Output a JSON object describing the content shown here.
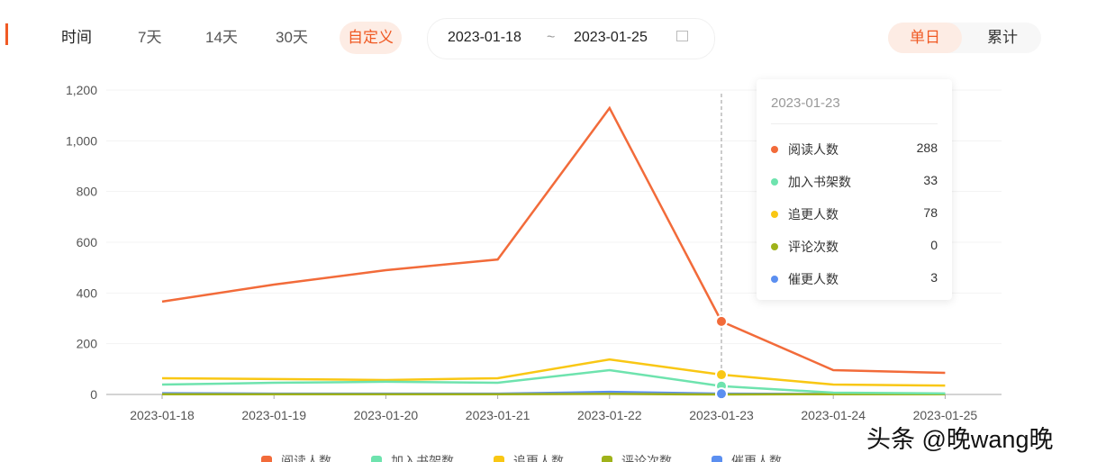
{
  "filters": {
    "label": "时间",
    "options": [
      "7天",
      "14天",
      "30天",
      "自定义"
    ],
    "active": "自定义"
  },
  "date_range": {
    "start": "2023-01-18",
    "sep": "~",
    "end": "2023-01-25",
    "icon": "calendar-icon"
  },
  "mode_toggle": {
    "options": [
      "单日",
      "累计"
    ],
    "active": "单日"
  },
  "tooltip": {
    "date": "2023-01-23",
    "rows": [
      {
        "label": "阅读人数",
        "value": "288"
      },
      {
        "label": "加入书架数",
        "value": "33"
      },
      {
        "label": "追更人数",
        "value": "78"
      },
      {
        "label": "评论次数",
        "value": "0"
      },
      {
        "label": "催更人数",
        "value": "3"
      }
    ]
  },
  "watermark": "头条 @晚wang晚",
  "chart_data": {
    "type": "line",
    "x": [
      "2023-01-18",
      "2023-01-19",
      "2023-01-20",
      "2023-01-21",
      "2023-01-22",
      "2023-01-23",
      "2023-01-24",
      "2023-01-25"
    ],
    "ylim": [
      0,
      1200
    ],
    "yticks": [
      "0",
      "200",
      "400",
      "600",
      "800",
      "1,000",
      "1,200"
    ],
    "highlight": "2023-01-23",
    "legend_position": "bottom",
    "series": [
      {
        "name": "阅读人数",
        "color": "#f26b3a",
        "values": [
          366,
          433,
          490,
          532,
          1129,
          288,
          96,
          85
        ]
      },
      {
        "name": "加入书架数",
        "color": "#6ee3ae",
        "values": [
          39,
          46,
          50,
          46,
          96,
          33,
          7,
          4
        ]
      },
      {
        "name": "追更人数",
        "color": "#f9c714",
        "values": [
          64,
          61,
          57,
          64,
          138,
          78,
          39,
          35
        ]
      },
      {
        "name": "评论次数",
        "color": "#9fb21a",
        "values": [
          1,
          1,
          1,
          1,
          2,
          0,
          1,
          1
        ]
      },
      {
        "name": "催更人数",
        "color": "#5b8ff0",
        "values": [
          5,
          3,
          3,
          3,
          10,
          3,
          2,
          2
        ]
      }
    ]
  }
}
